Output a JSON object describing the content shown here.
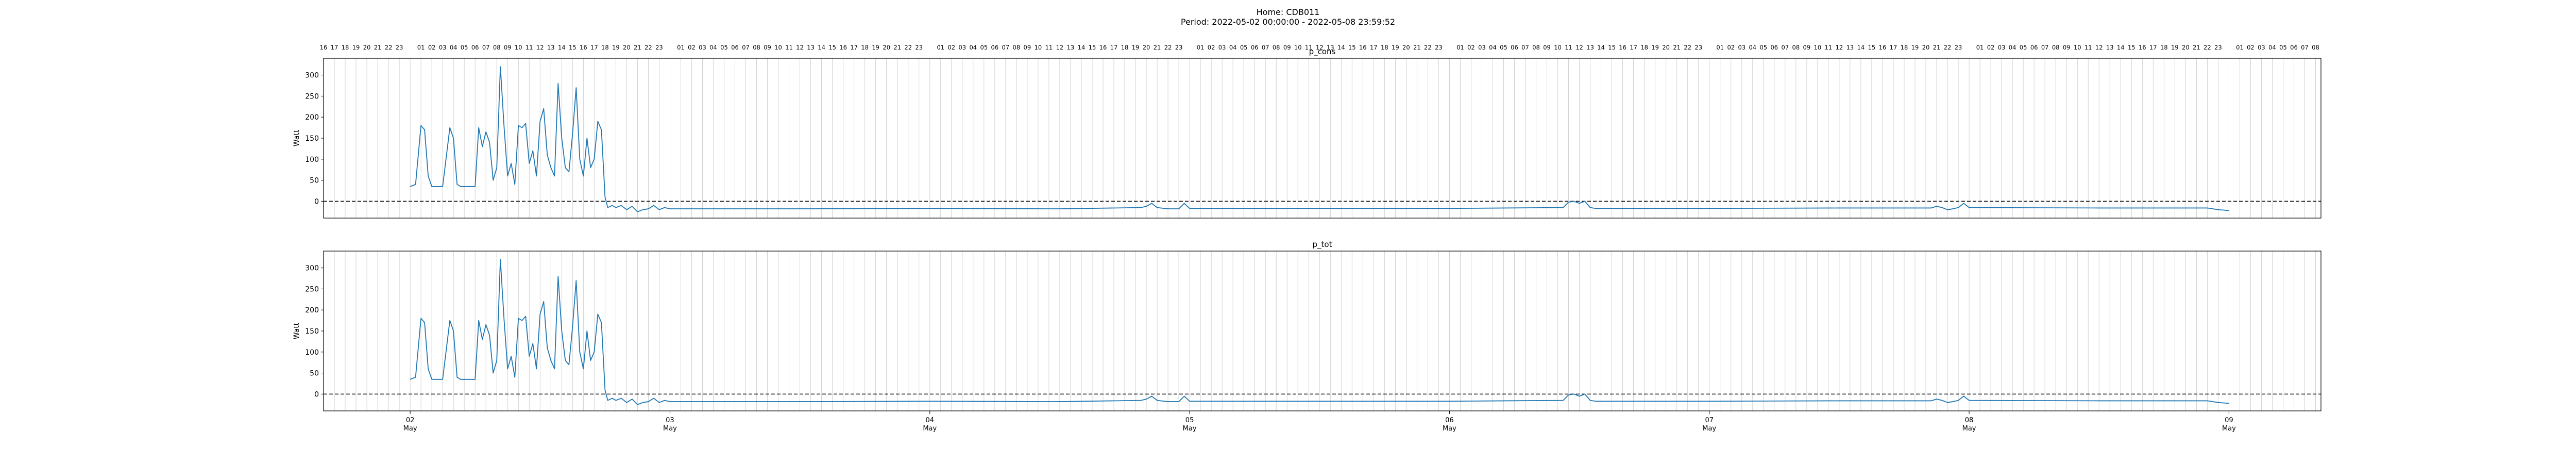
{
  "header": {
    "home_line": "Home: CDB011",
    "period_line": "Period: 2022-05-02 00:00:00 - 2022-05-08 23:59:52"
  },
  "chart_data": [
    {
      "type": "line",
      "title": "p_cons",
      "ylabel": "Watt",
      "xlabel": "",
      "ylim": [
        -40,
        340
      ],
      "yticks": [
        0,
        50,
        100,
        150,
        200,
        250,
        300
      ],
      "grid": "vertical hourly gridlines",
      "zero_line": "dashed black line at y = 0",
      "top_hour_tick_labels": "hour of day 01-23 per day, from 16 on May 1 to 08 on May 9",
      "date_tick_labels": [
        "02\nMay",
        "03\nMay",
        "04\nMay",
        "05\nMay",
        "06\nMay",
        "07\nMay",
        "08\nMay",
        "09\nMay"
      ],
      "xlim": [
        "2022-05-01 16:00",
        "2022-05-09 08:30"
      ],
      "series": [
        {
          "color": "#1f77b4",
          "x": [
            "2022-05-02 00:00",
            "2022-05-02 00:30",
            "2022-05-02 01:00",
            "2022-05-02 01:20",
            "2022-05-02 01:40",
            "2022-05-02 02:00",
            "2022-05-02 02:20",
            "2022-05-02 03:00",
            "2022-05-02 03:40",
            "2022-05-02 04:00",
            "2022-05-02 04:20",
            "2022-05-02 04:40",
            "2022-05-02 05:00",
            "2022-05-02 06:00",
            "2022-05-02 06:20",
            "2022-05-02 06:40",
            "2022-05-02 07:00",
            "2022-05-02 07:20",
            "2022-05-02 07:40",
            "2022-05-02 08:00",
            "2022-05-02 08:20",
            "2022-05-02 08:40",
            "2022-05-02 09:00",
            "2022-05-02 09:20",
            "2022-05-02 09:40",
            "2022-05-02 10:00",
            "2022-05-02 10:20",
            "2022-05-02 10:40",
            "2022-05-02 11:00",
            "2022-05-02 11:20",
            "2022-05-02 11:40",
            "2022-05-02 12:00",
            "2022-05-02 12:20",
            "2022-05-02 12:40",
            "2022-05-02 13:00",
            "2022-05-02 13:20",
            "2022-05-02 13:40",
            "2022-05-02 14:00",
            "2022-05-02 14:20",
            "2022-05-02 14:40",
            "2022-05-02 15:00",
            "2022-05-02 15:20",
            "2022-05-02 15:40",
            "2022-05-02 16:00",
            "2022-05-02 16:20",
            "2022-05-02 16:40",
            "2022-05-02 17:00",
            "2022-05-02 17:20",
            "2022-05-02 17:40",
            "2022-05-02 18:00",
            "2022-05-02 18:15",
            "2022-05-02 18:40",
            "2022-05-02 19:00",
            "2022-05-02 19:30",
            "2022-05-02 20:00",
            "2022-05-02 20:30",
            "2022-05-02 21:00",
            "2022-05-02 21:30",
            "2022-05-02 22:00",
            "2022-05-02 22:30",
            "2022-05-02 23:00",
            "2022-05-02 23:30",
            "2022-05-03 00:00",
            "2022-05-03 12:00",
            "2022-05-04 00:00",
            "2022-05-04 12:00",
            "2022-05-04 19:30",
            "2022-05-04 20:00",
            "2022-05-04 20:30",
            "2022-05-04 21:00",
            "2022-05-04 22:00",
            "2022-05-04 22:30",
            "2022-05-04 23:00",
            "2022-05-04 23:30",
            "2022-05-05 00:00",
            "2022-05-05 12:00",
            "2022-05-06 00:00",
            "2022-05-06 10:30",
            "2022-05-06 11:00",
            "2022-05-06 11:30",
            "2022-05-06 12:00",
            "2022-05-06 12:30",
            "2022-05-06 13:00",
            "2022-05-06 13:30",
            "2022-05-07 00:00",
            "2022-05-07 12:00",
            "2022-05-07 20:30",
            "2022-05-07 21:00",
            "2022-05-07 21:30",
            "2022-05-07 22:00",
            "2022-05-07 22:30",
            "2022-05-07 23:00",
            "2022-05-07 23:30",
            "2022-05-08 00:00",
            "2022-05-08 12:00",
            "2022-05-08 22:00",
            "2022-05-08 23:00",
            "2022-05-09 00:00"
          ],
          "y": [
            35,
            40,
            180,
            170,
            60,
            35,
            35,
            35,
            175,
            150,
            40,
            35,
            35,
            35,
            175,
            130,
            165,
            140,
            50,
            80,
            320,
            180,
            60,
            90,
            40,
            180,
            175,
            185,
            90,
            120,
            60,
            190,
            220,
            110,
            80,
            60,
            280,
            150,
            80,
            70,
            160,
            270,
            100,
            60,
            150,
            80,
            100,
            190,
            170,
            10,
            -15,
            -10,
            -15,
            -10,
            -20,
            -12,
            -25,
            -20,
            -18,
            -10,
            -20,
            -15,
            -18,
            -18,
            -17,
            -18,
            -15,
            -12,
            -5,
            -15,
            -18,
            -18,
            -18,
            -5,
            -17,
            -17,
            -17,
            -15,
            -2,
            0,
            -5,
            0,
            -15,
            -17,
            -17,
            -16,
            -16,
            -12,
            -15,
            -20,
            -18,
            -15,
            -5,
            -15,
            -16,
            -16,
            -20,
            -22
          ]
        }
      ]
    },
    {
      "type": "line",
      "title": "p_tot",
      "ylabel": "Watt",
      "xlabel": "",
      "ylim": [
        -40,
        340
      ],
      "yticks": [
        0,
        50,
        100,
        150,
        200,
        250,
        300
      ],
      "grid": "vertical hourly gridlines",
      "zero_line": "dashed black line at y = 0",
      "date_tick_labels": [
        "02\nMay",
        "03\nMay",
        "04\nMay",
        "05\nMay",
        "06\nMay",
        "07\nMay",
        "08\nMay",
        "09\nMay"
      ],
      "xlim": [
        "2022-05-01 16:00",
        "2022-05-09 08:30"
      ],
      "series": [
        {
          "color": "#1f77b4",
          "x": [
            "2022-05-02 00:00",
            "2022-05-02 00:30",
            "2022-05-02 01:00",
            "2022-05-02 01:20",
            "2022-05-02 01:40",
            "2022-05-02 02:00",
            "2022-05-02 02:20",
            "2022-05-02 03:00",
            "2022-05-02 03:40",
            "2022-05-02 04:00",
            "2022-05-02 04:20",
            "2022-05-02 04:40",
            "2022-05-02 05:00",
            "2022-05-02 06:00",
            "2022-05-02 06:20",
            "2022-05-02 06:40",
            "2022-05-02 07:00",
            "2022-05-02 07:20",
            "2022-05-02 07:40",
            "2022-05-02 08:00",
            "2022-05-02 08:20",
            "2022-05-02 08:40",
            "2022-05-02 09:00",
            "2022-05-02 09:20",
            "2022-05-02 09:40",
            "2022-05-02 10:00",
            "2022-05-02 10:20",
            "2022-05-02 10:40",
            "2022-05-02 11:00",
            "2022-05-02 11:20",
            "2022-05-02 11:40",
            "2022-05-02 12:00",
            "2022-05-02 12:20",
            "2022-05-02 12:40",
            "2022-05-02 13:00",
            "2022-05-02 13:20",
            "2022-05-02 13:40",
            "2022-05-02 14:00",
            "2022-05-02 14:20",
            "2022-05-02 14:40",
            "2022-05-02 15:00",
            "2022-05-02 15:20",
            "2022-05-02 15:40",
            "2022-05-02 16:00",
            "2022-05-02 16:20",
            "2022-05-02 16:40",
            "2022-05-02 17:00",
            "2022-05-02 17:20",
            "2022-05-02 17:40",
            "2022-05-02 18:00",
            "2022-05-02 18:15",
            "2022-05-02 18:40",
            "2022-05-02 19:00",
            "2022-05-02 19:30",
            "2022-05-02 20:00",
            "2022-05-02 20:30",
            "2022-05-02 21:00",
            "2022-05-02 21:30",
            "2022-05-02 22:00",
            "2022-05-02 22:30",
            "2022-05-02 23:00",
            "2022-05-02 23:30",
            "2022-05-03 00:00",
            "2022-05-03 12:00",
            "2022-05-04 00:00",
            "2022-05-04 12:00",
            "2022-05-04 19:30",
            "2022-05-04 20:00",
            "2022-05-04 20:30",
            "2022-05-04 21:00",
            "2022-05-04 22:00",
            "2022-05-04 22:30",
            "2022-05-04 23:00",
            "2022-05-04 23:30",
            "2022-05-05 00:00",
            "2022-05-05 12:00",
            "2022-05-06 00:00",
            "2022-05-06 10:30",
            "2022-05-06 11:00",
            "2022-05-06 11:30",
            "2022-05-06 12:00",
            "2022-05-06 12:30",
            "2022-05-06 13:00",
            "2022-05-06 13:30",
            "2022-05-07 00:00",
            "2022-05-07 12:00",
            "2022-05-07 20:30",
            "2022-05-07 21:00",
            "2022-05-07 21:30",
            "2022-05-07 22:00",
            "2022-05-07 22:30",
            "2022-05-07 23:00",
            "2022-05-07 23:30",
            "2022-05-08 00:00",
            "2022-05-08 12:00",
            "2022-05-08 22:00",
            "2022-05-08 23:00",
            "2022-05-09 00:00"
          ],
          "y": [
            35,
            40,
            180,
            170,
            60,
            35,
            35,
            35,
            175,
            150,
            40,
            35,
            35,
            35,
            175,
            130,
            165,
            140,
            50,
            80,
            320,
            180,
            60,
            90,
            40,
            180,
            175,
            185,
            90,
            120,
            60,
            190,
            220,
            110,
            80,
            60,
            280,
            150,
            80,
            70,
            160,
            270,
            100,
            60,
            150,
            80,
            100,
            190,
            170,
            10,
            -15,
            -10,
            -15,
            -10,
            -20,
            -12,
            -25,
            -20,
            -18,
            -10,
            -20,
            -15,
            -18,
            -18,
            -17,
            -18,
            -15,
            -12,
            -5,
            -15,
            -18,
            -18,
            -18,
            -5,
            -17,
            -17,
            -17,
            -15,
            -2,
            0,
            -5,
            0,
            -15,
            -17,
            -17,
            -16,
            -16,
            -12,
            -15,
            -20,
            -18,
            -15,
            -5,
            -15,
            -16,
            -16,
            -20,
            -22
          ]
        }
      ]
    }
  ]
}
